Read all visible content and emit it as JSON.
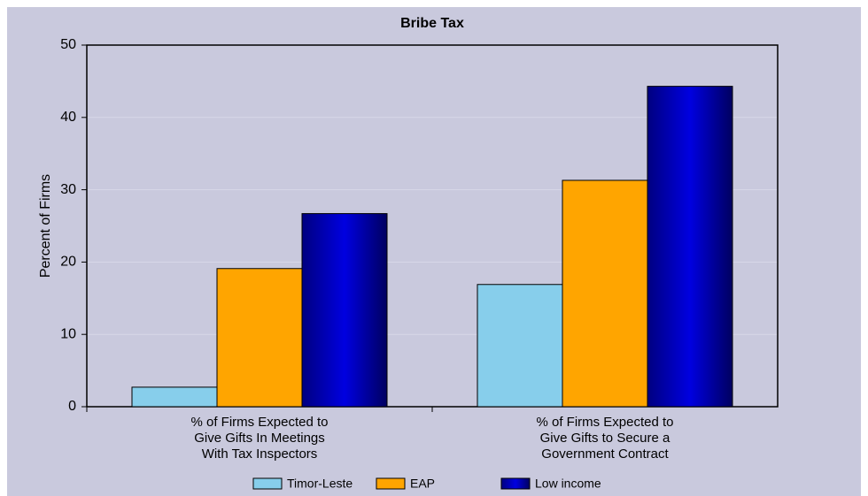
{
  "chart_data": {
    "type": "bar",
    "title": "Bribe Tax",
    "xlabel": "",
    "ylabel": "Percent of Firms",
    "ylim": [
      0,
      50
    ],
    "yticks": [
      0,
      10,
      20,
      30,
      40,
      50
    ],
    "grid": true,
    "legend": "bottom",
    "categories": [
      [
        "% of Firms Expected to",
        "Give Gifts In Meetings",
        "With Tax Inspectors"
      ],
      [
        "% of Firms Expected to",
        "Give Gifts to Secure a",
        "Government Contract"
      ]
    ],
    "series": [
      {
        "name": "Timor-Leste",
        "color": "#87ceeb",
        "values": [
          2.7,
          16.9
        ]
      },
      {
        "name": "EAP",
        "color": "#ffa500",
        "values": [
          19.1,
          31.3
        ]
      },
      {
        "name": "Low income",
        "color": "#0000cd",
        "values": [
          26.7,
          44.3
        ]
      }
    ]
  }
}
